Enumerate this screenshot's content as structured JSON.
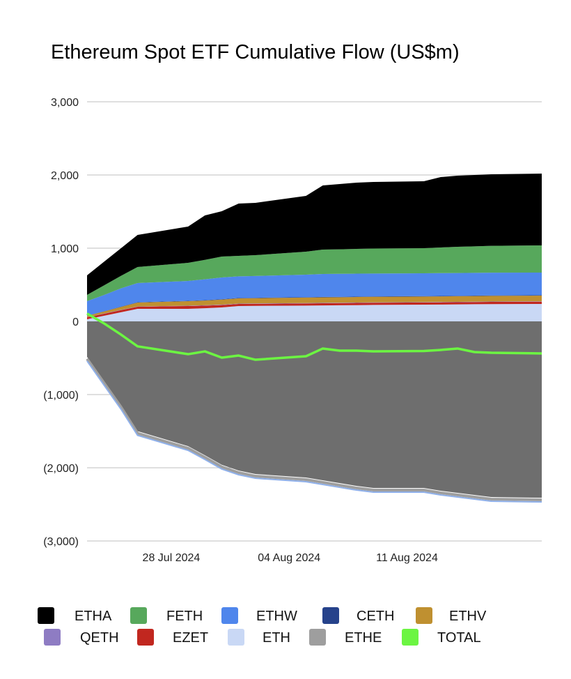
{
  "chart_data": {
    "type": "area",
    "stacked": true,
    "title": "Ethereum Spot ETF Cumulative Flow (US$m)",
    "xlabel": "",
    "ylabel": "",
    "ylim": [
      -3000,
      3000
    ],
    "yticks": [
      3000,
      2000,
      1000,
      0,
      -1000,
      -2000,
      -3000
    ],
    "ytick_labels": [
      "3,000",
      "2,000",
      "1,000",
      "0",
      "(1,000)",
      "(2,000)",
      "(3,000)"
    ],
    "xlim": [
      "2024-07-23",
      "2024-08-19"
    ],
    "xticks": [
      "2024-07-28",
      "2024-08-04",
      "2024-08-11"
    ],
    "xtick_labels": [
      "28 Jul 2024",
      "04 Aug 2024",
      "11 Aug 2024"
    ],
    "grid": true,
    "legend_position": "bottom",
    "x": [
      "2024-07-23",
      "2024-07-24",
      "2024-07-25",
      "2024-07-26",
      "2024-07-29",
      "2024-07-30",
      "2024-07-31",
      "2024-08-01",
      "2024-08-02",
      "2024-08-05",
      "2024-08-06",
      "2024-08-07",
      "2024-08-08",
      "2024-08-09",
      "2024-08-12",
      "2024-08-13",
      "2024-08-14",
      "2024-08-15",
      "2024-08-16",
      "2024-08-19"
    ],
    "series": [
      {
        "name": "ETHA",
        "color": "#000000",
        "values": [
          267,
          323,
          377,
          438,
          495,
          608,
          619,
          715,
          714,
          762,
          876,
          891,
          905,
          910,
          914,
          961,
          971,
          975,
          978,
          981
        ]
      },
      {
        "name": "FETH",
        "color": "#57a85c",
        "values": [
          86,
          130,
          170,
          219,
          248,
          265,
          286,
          280,
          285,
          314,
          333,
          335,
          338,
          341,
          343,
          351,
          358,
          362,
          367,
          371
        ]
      },
      {
        "name": "ETHW",
        "color": "#4f86ec",
        "values": [
          198,
          222,
          249,
          262,
          271,
          285,
          296,
          295,
          297,
          307,
          314,
          314,
          313,
          312,
          312,
          311,
          311,
          311,
          310,
          309
        ]
      },
      {
        "name": "CETH",
        "color": "#26428b",
        "values": [
          2,
          3,
          4,
          5,
          5,
          5,
          6,
          6,
          6,
          6,
          6,
          6,
          6,
          6,
          6,
          6,
          6,
          6,
          6,
          6
        ]
      },
      {
        "name": "ETHV",
        "color": "#bf9030",
        "values": [
          17,
          28,
          40,
          53,
          62,
          65,
          70,
          71,
          72,
          75,
          75,
          75,
          76,
          76,
          76,
          77,
          77,
          77,
          77,
          78
        ]
      },
      {
        "name": "QETH",
        "color": "#8e7cc3",
        "values": [
          2,
          3,
          4,
          4,
          4,
          4,
          5,
          5,
          5,
          5,
          5,
          5,
          5,
          5,
          5,
          5,
          5,
          5,
          5,
          5
        ]
      },
      {
        "name": "EZET",
        "color": "#c1271f",
        "values": [
          28,
          28,
          29,
          29,
          39,
          36,
          33,
          28,
          28,
          30,
          30,
          30,
          30,
          30,
          30,
          30,
          30,
          30,
          31,
          31
        ]
      },
      {
        "name": "ETH",
        "color": "#c9d8f5",
        "values": [
          29,
          76,
          124,
          171,
          171,
          180,
          190,
          210,
          212,
          215,
          218,
          220,
          222,
          225,
          228,
          230,
          232,
          234,
          236,
          238
        ]
      },
      {
        "name": "ETHE",
        "color": "#9e9e9e",
        "area_color": "#6e6e6e",
        "values": [
          -484,
          -811,
          -1137,
          -1500,
          -1705,
          -1830,
          -1960,
          -2038,
          -2086,
          -2133,
          -2171,
          -2210,
          -2248,
          -2276,
          -2276,
          -2314,
          -2343,
          -2371,
          -2400,
          -2410
        ]
      },
      {
        "name": "TOTAL",
        "color": "#6cf542",
        "type": "line",
        "values": [
          107,
          -26,
          -178,
          -341,
          -448,
          -410,
          -495,
          -467,
          -524,
          -476,
          -371,
          -400,
          -400,
          -410,
          -405,
          -390,
          -371,
          -419,
          -428,
          -438
        ]
      }
    ]
  }
}
